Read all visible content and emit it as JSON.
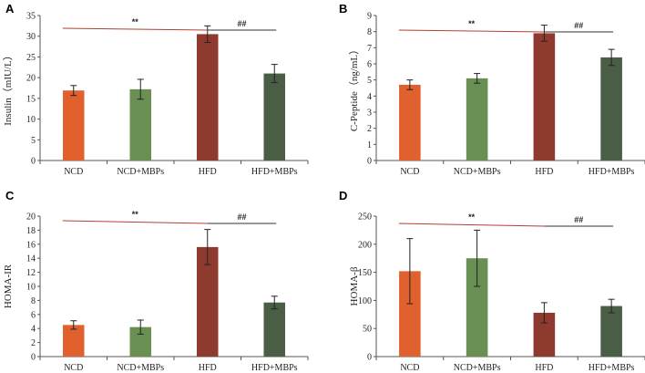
{
  "chart_data": [
    {
      "panel": "A",
      "type": "bar",
      "title": "",
      "xlabel": "",
      "ylabel": "Insulin（mIU/L）",
      "ylim": [
        0,
        35
      ],
      "yticks": [
        0,
        5,
        10,
        15,
        20,
        25,
        30,
        35
      ],
      "grid": false,
      "categories": [
        "NCD",
        "NCD+MBPs",
        "HFD",
        "HFD+MBPs"
      ],
      "values": [
        16.9,
        17.2,
        30.5,
        21.0
      ],
      "errors": [
        1.2,
        2.4,
        2.0,
        2.2
      ],
      "colors": [
        "#e0602e",
        "#6a8f52",
        "#8f3a2e",
        "#4a5e46"
      ],
      "annotations": [
        {
          "text": "**",
          "from": "NCD",
          "to": "HFD",
          "line_color": "#b04030"
        },
        {
          "text": "##",
          "from": "HFD",
          "to": "HFD+MBPs",
          "line_color": "#333333"
        }
      ]
    },
    {
      "panel": "B",
      "type": "bar",
      "title": "",
      "xlabel": "",
      "ylabel": "C-Peptide（ng/mL）",
      "ylim": [
        0,
        9
      ],
      "yticks": [
        0,
        1,
        2,
        3,
        4,
        5,
        6,
        7,
        8,
        9
      ],
      "grid": false,
      "categories": [
        "NCD",
        "NCD+MBPs",
        "HFD",
        "HFD+MBPs"
      ],
      "values": [
        4.7,
        5.1,
        7.9,
        6.4
      ],
      "errors": [
        0.3,
        0.3,
        0.5,
        0.5
      ],
      "colors": [
        "#e0602e",
        "#6a8f52",
        "#8f3a2e",
        "#4a5e46"
      ],
      "annotations": [
        {
          "text": "**",
          "from": "NCD",
          "to": "HFD",
          "line_color": "#b04030"
        },
        {
          "text": "##",
          "from": "HFD",
          "to": "HFD+MBPs",
          "line_color": "#333333"
        }
      ]
    },
    {
      "panel": "C",
      "type": "bar",
      "title": "",
      "xlabel": "",
      "ylabel": "HOMA-IR",
      "ylim": [
        0,
        20
      ],
      "yticks": [
        0,
        2,
        4,
        6,
        8,
        10,
        12,
        14,
        16,
        18,
        20
      ],
      "grid": false,
      "categories": [
        "NCD",
        "NCD+MBPs",
        "HFD",
        "HFD+MBPs"
      ],
      "values": [
        4.5,
        4.2,
        15.6,
        7.7
      ],
      "errors": [
        0.6,
        1.0,
        2.5,
        0.9
      ],
      "colors": [
        "#e0602e",
        "#6a8f52",
        "#8f3a2e",
        "#4a5e46"
      ],
      "annotations": [
        {
          "text": "**",
          "from": "NCD",
          "to": "HFD",
          "line_color": "#b04030"
        },
        {
          "text": "##",
          "from": "HFD",
          "to": "HFD+MBPs",
          "line_color": "#333333"
        }
      ]
    },
    {
      "panel": "D",
      "type": "bar",
      "title": "",
      "xlabel": "",
      "ylabel": "HOMA-β",
      "ylim": [
        0,
        250
      ],
      "yticks": [
        0,
        50,
        100,
        150,
        200,
        250
      ],
      "grid": false,
      "categories": [
        "NCD",
        "NCD+MBPs",
        "HFD",
        "HFD+MBPs"
      ],
      "values": [
        152,
        175,
        78,
        90
      ],
      "errors": [
        58,
        50,
        18,
        12
      ],
      "colors": [
        "#e0602e",
        "#6a8f52",
        "#8f3a2e",
        "#4a5e46"
      ],
      "annotations": [
        {
          "text": "**",
          "from": "NCD",
          "to": "HFD",
          "line_color": "#b04030"
        },
        {
          "text": "##",
          "from": "HFD",
          "to": "HFD+MBPs",
          "line_color": "#333333"
        }
      ]
    }
  ]
}
